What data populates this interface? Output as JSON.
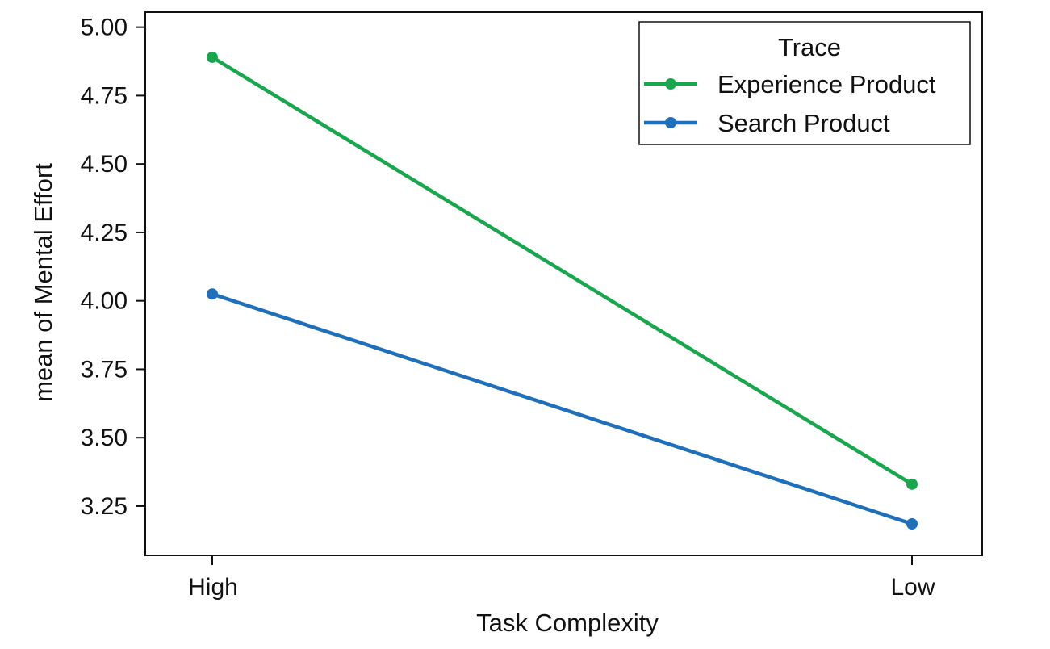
{
  "chart_data": {
    "type": "line",
    "categories": [
      "High",
      "Low"
    ],
    "series": [
      {
        "name": "Experience Product",
        "values": [
          4.89,
          3.33
        ],
        "color": "#1aa64e"
      },
      {
        "name": "Search Product",
        "values": [
          4.025,
          3.185
        ],
        "color": "#1f6fba"
      }
    ],
    "title": "",
    "xlabel": "Task Complexity",
    "ylabel": "mean of Mental Effort",
    "ylim": [
      3.07,
      5.055
    ],
    "yticks": [
      "5.00",
      "4.75",
      "4.50",
      "4.25",
      "4.00",
      "3.75",
      "3.50",
      "3.25"
    ],
    "legend": {
      "title": "Trace",
      "placement": "top-right"
    },
    "grid": false
  }
}
